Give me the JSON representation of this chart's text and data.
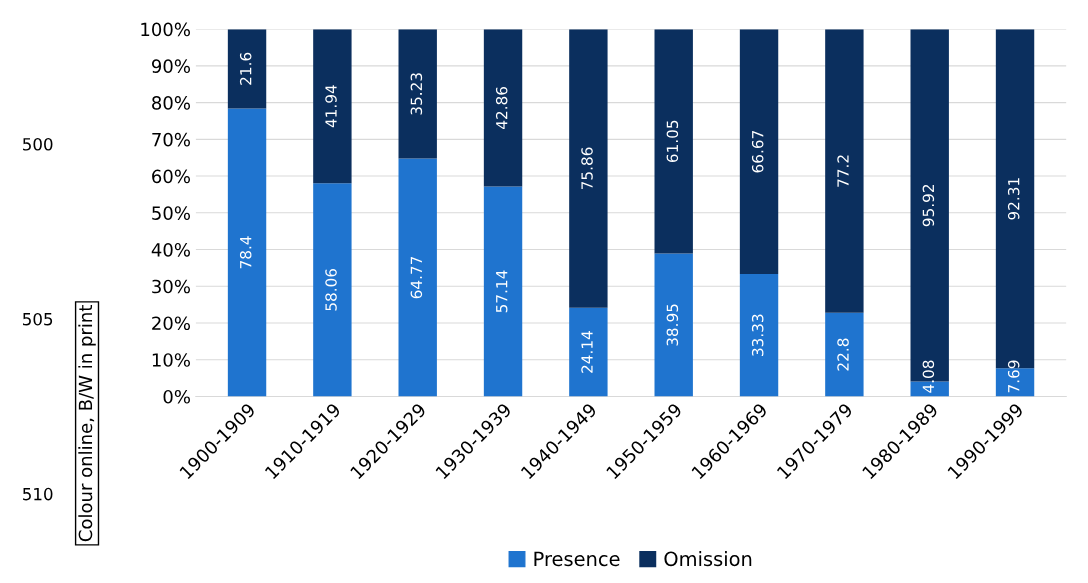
{
  "chart_data": {
    "type": "bar",
    "stacked": true,
    "categories": [
      "1900-1909",
      "1910-1919",
      "1920-1929",
      "1930-1939",
      "1940-1949",
      "1950-1959",
      "1960-1969",
      "1970-1979",
      "1980-1989",
      "1990-1999"
    ],
    "series": [
      {
        "name": "Presence",
        "color": "#1f74cf",
        "values": [
          78.4,
          58.06,
          64.77,
          57.14,
          24.14,
          38.95,
          33.33,
          22.8,
          4.08,
          7.69
        ]
      },
      {
        "name": "Omission",
        "color": "#0b2f5e",
        "values": [
          21.6,
          41.94,
          35.23,
          42.86,
          75.86,
          61.05,
          66.67,
          77.2,
          95.92,
          92.31
        ]
      }
    ],
    "ylim": [
      0,
      100
    ],
    "yticks": [
      {
        "value": 0,
        "label": "0%"
      },
      {
        "value": 10,
        "label": "10%"
      },
      {
        "value": 20,
        "label": "20%"
      },
      {
        "value": 30,
        "label": "30%"
      },
      {
        "value": 40,
        "label": "40%"
      },
      {
        "value": 50,
        "label": "50%"
      },
      {
        "value": 60,
        "label": "60%"
      },
      {
        "value": 70,
        "label": "70%"
      },
      {
        "value": 80,
        "label": "80%"
      },
      {
        "value": 90,
        "label": "90%"
      },
      {
        "value": 100,
        "label": "100%"
      }
    ],
    "grid": "y",
    "legend": "bottom",
    "data_labels": true,
    "annotations": [
      "500",
      "505",
      "510",
      "Colour online, B/W in print"
    ]
  }
}
